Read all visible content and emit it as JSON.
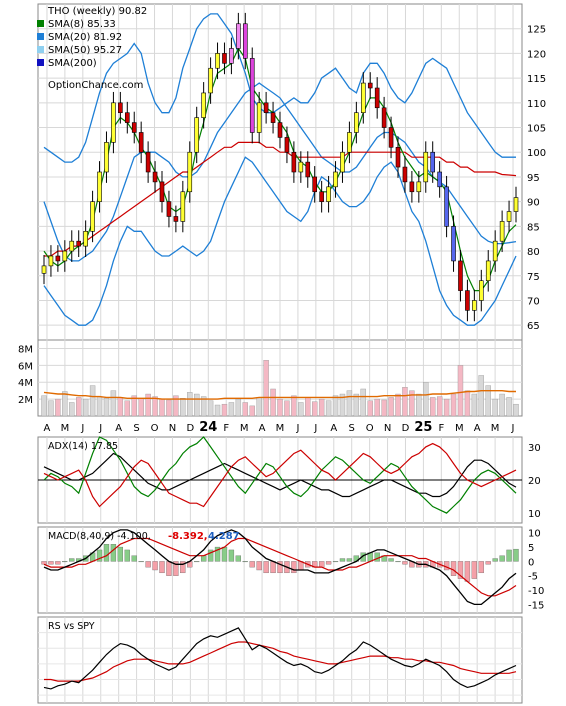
{
  "chart_data": [
    {
      "type": "candlestick",
      "title": "THO (weekly) 90.82",
      "watermark": "OptionChance.com",
      "legend": [
        {
          "label": "SMA(8) 85.33",
          "color": "#008000"
        },
        {
          "label": "SMA(20) 81.92",
          "color": "#1e7fd6"
        },
        {
          "label": "SMA(50) 95.27",
          "color": "#8fd0f0"
        },
        {
          "label": "SMA(200)",
          "color": "#1010c0"
        }
      ],
      "ylim": [
        62,
        130
      ],
      "y_ticks": [
        65,
        70,
        75,
        80,
        85,
        90,
        95,
        100,
        105,
        110,
        115,
        120,
        125
      ],
      "x_labels": [
        "A",
        "M",
        "J",
        "J",
        "A",
        "S",
        "O",
        "N",
        "D",
        "24",
        "F",
        "M",
        "A",
        "M",
        "J",
        "J",
        "A",
        "S",
        "O",
        "N",
        "D",
        "25",
        "F",
        "M",
        "A",
        "M",
        "J"
      ],
      "bold_x_labels": [
        "24",
        "25"
      ],
      "close_series": [
        77,
        79,
        78,
        80,
        82,
        81,
        84,
        90,
        96,
        102,
        110,
        108,
        106,
        104,
        100,
        96,
        94,
        90,
        87,
        86,
        92,
        100,
        107,
        112,
        117,
        120,
        118,
        121,
        126,
        119,
        104,
        110,
        108,
        106,
        103,
        100,
        96,
        98,
        95,
        92,
        90,
        93,
        96,
        100,
        104,
        108,
        114,
        113,
        109,
        105,
        101,
        97,
        94,
        92,
        94,
        100,
        96,
        93,
        85,
        78,
        72,
        68,
        70,
        74,
        78,
        82,
        86,
        88,
        90.82
      ],
      "sma8_series": [
        80,
        78,
        77,
        78,
        80,
        81,
        82,
        86,
        92,
        98,
        105,
        107,
        106,
        104,
        101,
        99,
        96,
        93,
        89,
        88,
        89,
        94,
        101,
        106,
        112,
        116,
        117,
        118,
        121,
        119,
        113,
        111,
        109,
        108,
        106,
        104,
        100,
        98,
        97,
        94,
        92,
        92,
        94,
        97,
        100,
        104,
        108,
        111,
        111,
        109,
        106,
        102,
        99,
        97,
        95,
        96,
        95,
        94,
        92,
        86,
        80,
        75,
        72,
        72,
        74,
        78,
        81,
        84,
        85.33
      ],
      "sma20_series": [
        90,
        86,
        82,
        79,
        78,
        78,
        79,
        80,
        82,
        84,
        87,
        91,
        95,
        99,
        100,
        100,
        100,
        99,
        98,
        96,
        95,
        95,
        96,
        98,
        101,
        104,
        106,
        108,
        110,
        112,
        113,
        114,
        113,
        112,
        111,
        109,
        107,
        105,
        103,
        101,
        99,
        98,
        97,
        96,
        96,
        97,
        99,
        101,
        103,
        104,
        104,
        103,
        102,
        100,
        98,
        97,
        95,
        94,
        93,
        91,
        89,
        87,
        85,
        83,
        82,
        81.5,
        81.5,
        81.7,
        81.92
      ],
      "sma50_series": [
        79,
        79,
        80,
        80,
        81,
        81,
        82,
        83,
        84,
        85,
        86,
        87,
        88,
        89,
        90,
        91,
        92,
        93,
        94,
        95,
        96,
        96,
        97,
        98,
        99,
        100,
        101,
        101,
        102,
        102,
        102,
        102,
        101,
        101,
        100,
        100,
        99,
        99,
        99,
        99,
        99,
        99,
        99,
        99,
        100,
        100,
        100,
        100,
        100,
        100,
        100,
        100,
        100,
        99,
        99,
        99,
        99,
        99,
        98,
        98,
        97,
        97,
        96,
        96,
        96,
        96,
        95.5,
        95.4,
        95.27
      ],
      "bb_upper_series": [
        101,
        100,
        99,
        98,
        98,
        99,
        102,
        107,
        112,
        116,
        118,
        119,
        120,
        122,
        120,
        114,
        110,
        108,
        108,
        111,
        117,
        121,
        125,
        127,
        128,
        128,
        126,
        124,
        120,
        116,
        111,
        109,
        108,
        108,
        109,
        110,
        111,
        110,
        110,
        112,
        115,
        116,
        117,
        115,
        113,
        112,
        116,
        118,
        118,
        116,
        113,
        111,
        110,
        112,
        115,
        118,
        119,
        118,
        117,
        114,
        111,
        108,
        106,
        104,
        102,
        100,
        99,
        99,
        99
      ],
      "bb_lower_series": [
        73,
        71,
        69,
        67,
        66,
        65,
        65,
        66,
        69,
        73,
        78,
        82,
        85,
        84,
        84,
        82,
        80,
        79,
        79,
        80,
        81,
        80,
        79,
        80,
        82,
        86,
        90,
        93,
        96,
        99,
        98,
        96,
        94,
        92,
        90,
        88,
        87,
        86,
        88,
        92,
        95,
        94,
        92,
        90,
        89,
        89,
        90,
        92,
        95,
        97,
        98,
        96,
        92,
        88,
        86,
        82,
        77,
        72,
        69,
        67,
        66,
        65,
        65,
        66,
        68,
        70,
        73,
        76,
        79
      ],
      "y_axis_label_side": "right"
    },
    {
      "type": "bar",
      "name": "Volume",
      "ylim": [
        0,
        9
      ],
      "y_ticks": [
        {
          "value": 2,
          "label": "2M"
        },
        {
          "value": 4,
          "label": "4M"
        },
        {
          "value": 6,
          "label": "6M"
        },
        {
          "value": 8,
          "label": "8M"
        }
      ],
      "values": [
        2.4,
        1.8,
        2.0,
        2.9,
        1.6,
        2.2,
        2.0,
        3.6,
        2.3,
        2.1,
        3.0,
        2.2,
        1.8,
        2.4,
        2.1,
        2.6,
        2.3,
        2.0,
        1.9,
        2.4,
        2.1,
        2.8,
        2.6,
        2.3,
        1.8,
        1.3,
        1.4,
        1.6,
        2.0,
        1.6,
        1.2,
        2.2,
        6.6,
        3.2,
        2.0,
        1.8,
        2.4,
        1.6,
        2.2,
        1.7,
        2.0,
        1.8,
        2.4,
        2.6,
        3.0,
        2.6,
        3.2,
        1.8,
        2.0,
        1.9,
        2.2,
        2.6,
        3.4,
        3.0,
        2.6,
        4.0,
        2.2,
        2.3,
        2.0,
        2.6,
        6.0,
        3.0,
        2.6,
        4.8,
        3.6,
        2.0,
        2.6,
        2.2,
        1.4
      ],
      "avg_series": [
        2.8,
        2.7,
        2.6,
        2.6,
        2.5,
        2.4,
        2.4,
        2.3,
        2.3,
        2.2,
        2.2,
        2.2,
        2.1,
        2.1,
        2.1,
        2.1,
        2.1,
        2.0,
        2.0,
        2.0,
        2.0,
        2.0,
        2.0,
        2.0,
        2.0,
        2.0,
        2.1,
        2.1,
        2.1,
        2.1,
        2.1,
        2.2,
        2.2,
        2.2,
        2.2,
        2.2,
        2.2,
        2.2,
        2.2,
        2.2,
        2.2,
        2.2,
        2.2,
        2.2,
        2.3,
        2.3,
        2.3,
        2.3,
        2.3,
        2.4,
        2.4,
        2.4,
        2.4,
        2.5,
        2.5,
        2.5,
        2.6,
        2.6,
        2.6,
        2.7,
        2.8,
        2.9,
        2.9,
        3.0,
        3.0,
        3.0,
        3.0,
        2.9,
        2.9
      ]
    },
    {
      "type": "line",
      "name": "ADX",
      "label": "ADX(14) 17.85",
      "ylim": [
        7,
        33
      ],
      "y_ticks": [
        10,
        20,
        30
      ],
      "reference_line": 20,
      "series": [
        {
          "color": "#000000",
          "values": [
            24,
            23,
            22,
            21,
            20,
            20,
            21,
            22,
            24,
            26,
            28,
            27,
            25,
            23,
            21,
            19,
            18,
            17,
            17,
            18,
            19,
            20,
            21,
            22,
            23,
            24,
            25,
            24,
            23,
            22,
            21,
            20,
            19,
            18,
            17,
            18,
            19,
            20,
            19,
            18,
            17,
            17,
            16,
            15,
            15,
            16,
            17,
            18,
            19,
            20,
            20,
            19,
            18,
            17,
            16,
            16,
            15,
            15,
            16,
            18,
            21,
            24,
            26,
            26,
            25,
            23,
            21,
            19,
            17.85
          ]
        },
        {
          "color": "#008000",
          "values": [
            20,
            22,
            21,
            19,
            18,
            16,
            22,
            28,
            34,
            32,
            29,
            26,
            22,
            18,
            16,
            15,
            17,
            20,
            23,
            25,
            28,
            30,
            31,
            33,
            30,
            27,
            24,
            21,
            18,
            16,
            19,
            22,
            25,
            24,
            21,
            18,
            16,
            15,
            17,
            20,
            23,
            25,
            27,
            26,
            24,
            22,
            20,
            19,
            21,
            23,
            25,
            24,
            21,
            18,
            16,
            14,
            12,
            11,
            10,
            12,
            14,
            17,
            20,
            22,
            23,
            22,
            20,
            18,
            16
          ]
        },
        {
          "color": "#cc0000",
          "values": [
            22,
            21,
            20,
            21,
            22,
            23,
            20,
            15,
            12,
            14,
            16,
            18,
            21,
            24,
            26,
            25,
            22,
            19,
            16,
            15,
            14,
            13,
            13,
            12,
            15,
            18,
            21,
            24,
            26,
            27,
            25,
            23,
            21,
            22,
            24,
            26,
            28,
            29,
            27,
            25,
            23,
            22,
            20,
            22,
            24,
            26,
            28,
            27,
            25,
            23,
            22,
            23,
            25,
            27,
            28,
            30,
            31,
            30,
            28,
            25,
            22,
            20,
            19,
            18,
            19,
            20,
            21,
            22,
            23
          ]
        }
      ]
    },
    {
      "type": "bar",
      "name": "MACD",
      "label": "MACD(8,40,9) -4.100,",
      "label_parts": [
        {
          "text": "-8.392,",
          "color": "#dd0000"
        },
        {
          "text": "4.287",
          "color": "#1e5fbf"
        }
      ],
      "ylim": [
        -18,
        12
      ],
      "y_ticks": [
        10,
        5,
        0,
        -5,
        -10,
        -15
      ],
      "macd_series": [
        -2,
        -3,
        -3,
        -2,
        -1,
        0,
        1,
        3,
        5,
        8,
        10,
        11,
        11,
        10,
        8,
        6,
        4,
        2,
        0,
        -1,
        -1,
        0,
        2,
        4,
        7,
        9,
        10,
        11,
        10,
        8,
        5,
        3,
        1,
        0,
        -1,
        -2,
        -3,
        -3,
        -3,
        -4,
        -4,
        -4,
        -3,
        -2,
        -1,
        0,
        2,
        3,
        4,
        4,
        3,
        2,
        1,
        0,
        -1,
        -1,
        -2,
        -3,
        -5,
        -8,
        -11,
        -14,
        -15,
        -15,
        -13,
        -11,
        -9,
        -6,
        -4.1
      ],
      "signal_series": [
        -1,
        -2,
        -2,
        -2,
        -2,
        -1,
        -1,
        0,
        1,
        2,
        4,
        6,
        7,
        8,
        8,
        8,
        7,
        6,
        5,
        4,
        3,
        2,
        2,
        2,
        3,
        4,
        5,
        7,
        8,
        8,
        7,
        6,
        5,
        4,
        3,
        2,
        1,
        0,
        -1,
        -2,
        -2,
        -3,
        -3,
        -3,
        -2,
        -2,
        -1,
        0,
        1,
        2,
        2,
        2,
        2,
        2,
        1,
        1,
        0,
        -1,
        -2,
        -3,
        -5,
        -7,
        -9,
        -11,
        -12,
        -12,
        -11,
        -10,
        -8.392
      ],
      "histogram_series": [
        -1,
        -1,
        -1,
        0,
        1,
        1,
        2,
        3,
        4,
        6,
        6,
        5,
        4,
        2,
        0,
        -2,
        -3,
        -4,
        -5,
        -5,
        -4,
        -2,
        0,
        2,
        4,
        5,
        5,
        4,
        2,
        0,
        -2,
        -3,
        -4,
        -4,
        -4,
        -4,
        -4,
        -3,
        -2,
        -2,
        -2,
        -1,
        0,
        1,
        1,
        2,
        3,
        3,
        3,
        2,
        1,
        0,
        -1,
        -2,
        -2,
        -2,
        -2,
        -2,
        -3,
        -5,
        -6,
        -7,
        -6,
        -4,
        -1,
        1,
        2,
        4,
        4.287
      ]
    },
    {
      "type": "line",
      "name": "RS vs SPY",
      "label": "RS vs SPY",
      "series": [
        {
          "color": "#000000",
          "values": [
            1.5,
            1.4,
            1.6,
            1.7,
            1.9,
            1.8,
            2.2,
            2.6,
            3.1,
            3.6,
            4.0,
            4.3,
            4.2,
            4.0,
            3.6,
            3.3,
            3.0,
            2.8,
            2.6,
            2.8,
            3.3,
            3.8,
            4.3,
            4.6,
            4.8,
            4.7,
            4.9,
            5.1,
            5.3,
            4.6,
            3.9,
            4.2,
            4.0,
            3.7,
            3.4,
            3.1,
            2.9,
            3.0,
            2.8,
            2.5,
            2.4,
            2.6,
            2.9,
            3.2,
            3.6,
            3.9,
            4.4,
            4.2,
            3.9,
            3.6,
            3.3,
            3.1,
            2.9,
            2.8,
            3.0,
            3.3,
            3.1,
            2.9,
            2.5,
            2.0,
            1.7,
            1.5,
            1.6,
            1.8,
            2.0,
            2.3,
            2.5,
            2.7,
            2.9
          ]
        },
        {
          "color": "#cc0000",
          "values": [
            2.0,
            2.0,
            1.9,
            1.9,
            1.9,
            1.9,
            2.0,
            2.1,
            2.3,
            2.5,
            2.8,
            3.0,
            3.2,
            3.3,
            3.3,
            3.3,
            3.2,
            3.1,
            3.0,
            3.0,
            3.0,
            3.1,
            3.3,
            3.5,
            3.7,
            3.9,
            4.1,
            4.3,
            4.4,
            4.4,
            4.3,
            4.2,
            4.1,
            4.0,
            3.8,
            3.7,
            3.5,
            3.4,
            3.3,
            3.2,
            3.1,
            3.0,
            3.0,
            3.1,
            3.2,
            3.3,
            3.4,
            3.5,
            3.5,
            3.5,
            3.4,
            3.4,
            3.3,
            3.3,
            3.2,
            3.2,
            3.1,
            3.1,
            3.0,
            2.9,
            2.7,
            2.6,
            2.5,
            2.4,
            2.4,
            2.4,
            2.4,
            2.4,
            2.5
          ]
        }
      ]
    }
  ]
}
